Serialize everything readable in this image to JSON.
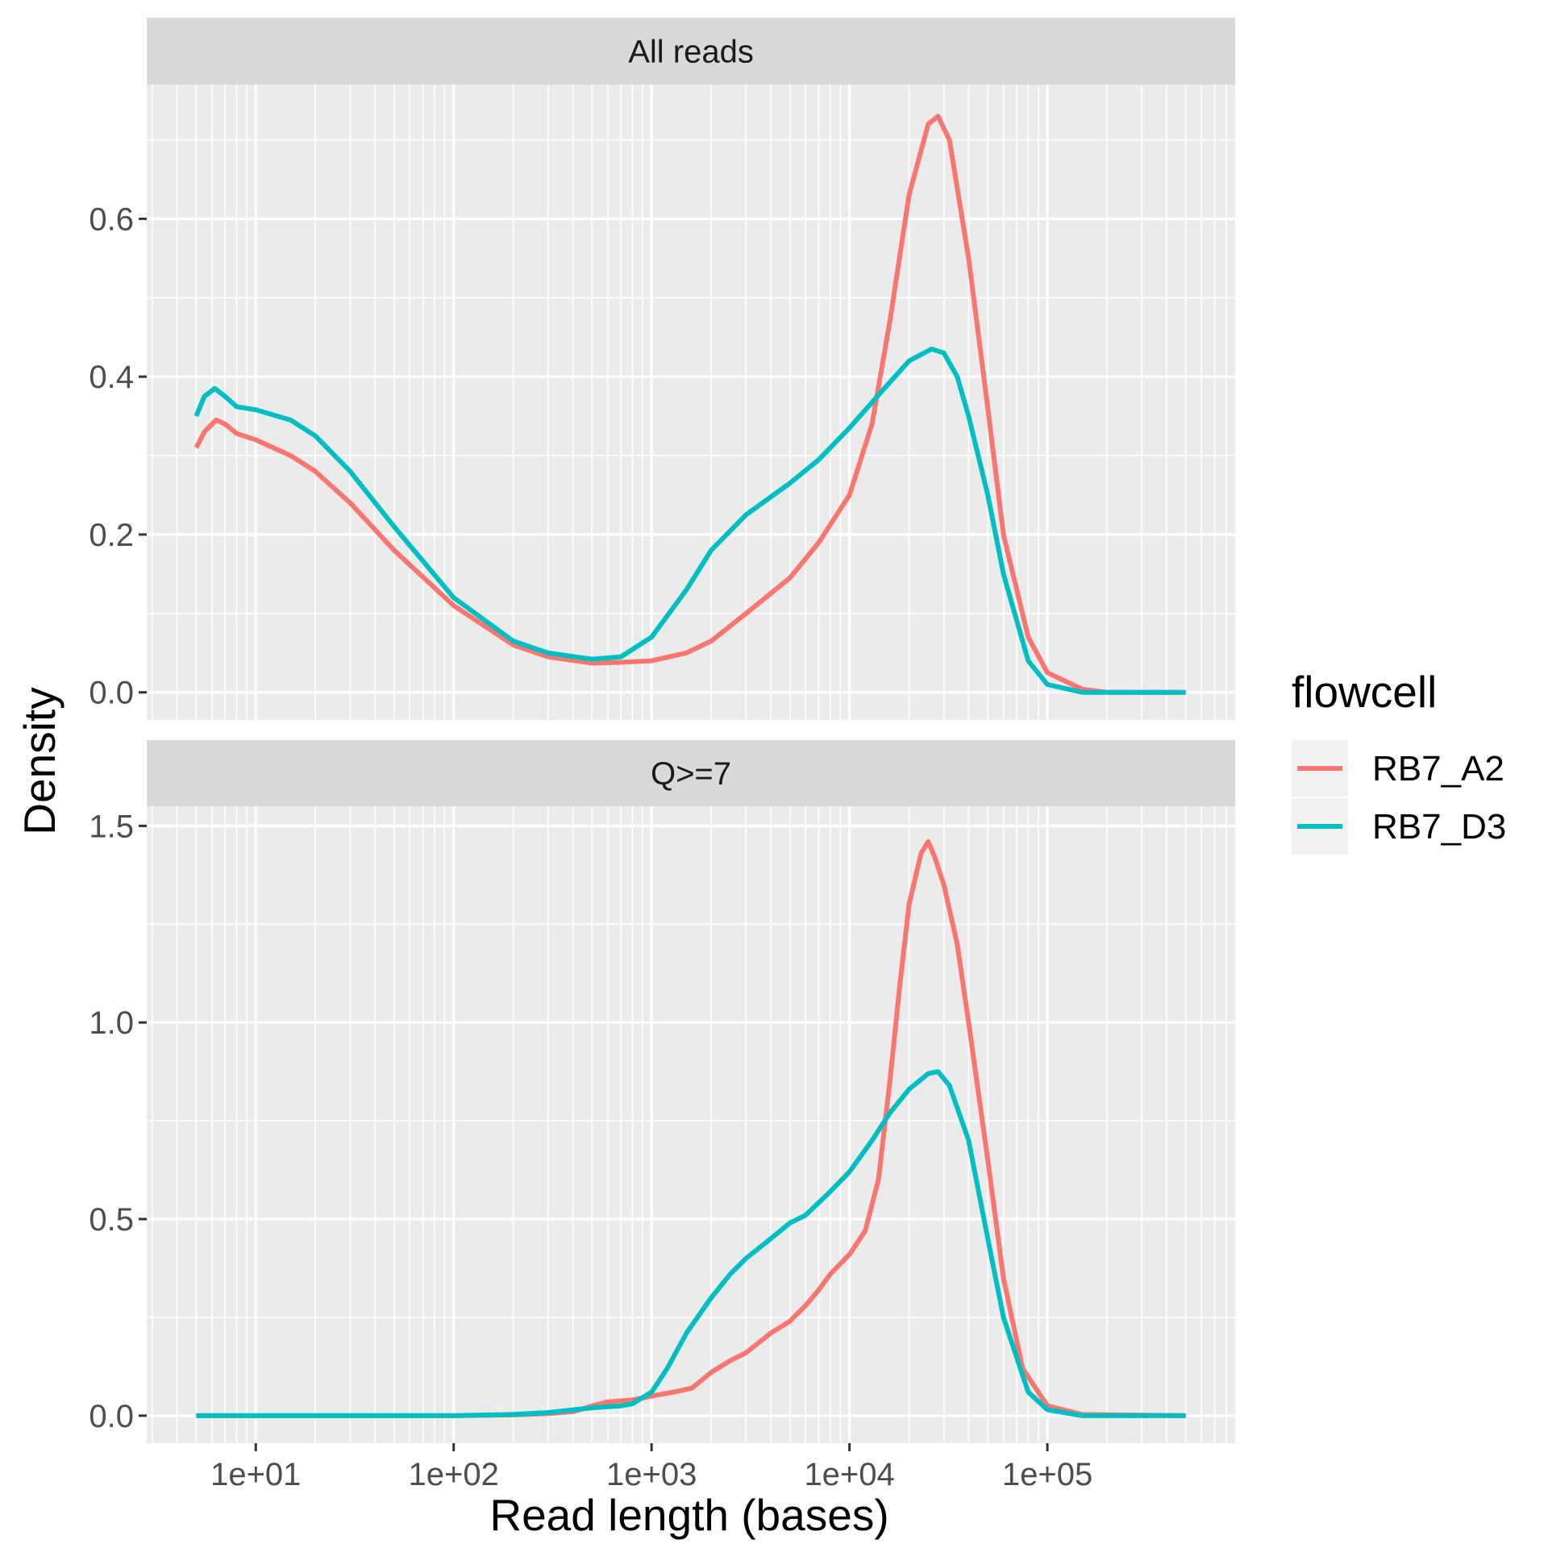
{
  "chart_data": {
    "type": "line",
    "xlabel": "Read length (bases)",
    "ylabel": "Density",
    "x_scale": "log10",
    "xlim": [
      5,
      500000
    ],
    "x_ticks": [
      10,
      100,
      1000,
      10000,
      100000
    ],
    "x_tick_labels": [
      "1e+01",
      "1e+02",
      "1e+03",
      "1e+04",
      "1e+05"
    ],
    "legend": {
      "title": "flowcell",
      "position": "right"
    },
    "colors": {
      "RB7_A2": "#F8766D",
      "RB7_D3": "#00BFC4"
    },
    "grid": true,
    "panels": [
      {
        "strip": "All reads",
        "ylim": [
          -0.035,
          0.77
        ],
        "y_ticks": [
          0.0,
          0.2,
          0.4,
          0.6
        ],
        "y_tick_labels": [
          "0.0",
          "0.2",
          "0.4",
          "0.6"
        ],
        "series": [
          {
            "name": "RB7_A2",
            "points": [
              [
                5,
                0.31
              ],
              [
                5.5,
                0.33
              ],
              [
                6.3,
                0.345
              ],
              [
                7,
                0.34
              ],
              [
                8,
                0.328
              ],
              [
                10,
                0.32
              ],
              [
                15,
                0.3
              ],
              [
                20,
                0.28
              ],
              [
                30,
                0.24
              ],
              [
                50,
                0.18
              ],
              [
                100,
                0.11
              ],
              [
                200,
                0.06
              ],
              [
                300,
                0.045
              ],
              [
                500,
                0.037
              ],
              [
                700,
                0.038
              ],
              [
                1000,
                0.04
              ],
              [
                1500,
                0.05
              ],
              [
                2000,
                0.065
              ],
              [
                3000,
                0.1
              ],
              [
                5000,
                0.145
              ],
              [
                7000,
                0.19
              ],
              [
                10000,
                0.25
              ],
              [
                13000,
                0.34
              ],
              [
                16000,
                0.47
              ],
              [
                20000,
                0.63
              ],
              [
                25000,
                0.72
              ],
              [
                28000,
                0.73
              ],
              [
                32000,
                0.7
              ],
              [
                40000,
                0.55
              ],
              [
                50000,
                0.36
              ],
              [
                60000,
                0.2
              ],
              [
                80000,
                0.07
              ],
              [
                100000,
                0.025
              ],
              [
                150000,
                0.004
              ],
              [
                200000,
                0.0
              ],
              [
                500000,
                0.0
              ]
            ]
          },
          {
            "name": "RB7_D3",
            "points": [
              [
                5,
                0.35
              ],
              [
                5.5,
                0.375
              ],
              [
                6.2,
                0.385
              ],
              [
                7,
                0.375
              ],
              [
                8,
                0.362
              ],
              [
                10,
                0.358
              ],
              [
                15,
                0.345
              ],
              [
                20,
                0.325
              ],
              [
                30,
                0.28
              ],
              [
                50,
                0.21
              ],
              [
                100,
                0.12
              ],
              [
                200,
                0.065
              ],
              [
                300,
                0.05
              ],
              [
                500,
                0.042
              ],
              [
                700,
                0.045
              ],
              [
                1000,
                0.07
              ],
              [
                1500,
                0.13
              ],
              [
                2000,
                0.18
              ],
              [
                3000,
                0.225
              ],
              [
                5000,
                0.265
              ],
              [
                7000,
                0.295
              ],
              [
                10000,
                0.335
              ],
              [
                15000,
                0.385
              ],
              [
                20000,
                0.42
              ],
              [
                26000,
                0.435
              ],
              [
                30000,
                0.43
              ],
              [
                35000,
                0.4
              ],
              [
                40000,
                0.35
              ],
              [
                50000,
                0.25
              ],
              [
                60000,
                0.15
              ],
              [
                80000,
                0.04
              ],
              [
                100000,
                0.01
              ],
              [
                150000,
                0.0
              ],
              [
                500000,
                0.0
              ]
            ]
          }
        ]
      },
      {
        "strip": "Q>=7",
        "ylim": [
          -0.07,
          1.55
        ],
        "y_ticks": [
          0.0,
          0.5,
          1.0,
          1.5
        ],
        "y_tick_labels": [
          "0.0",
          "0.5",
          "1.0",
          "1.5"
        ],
        "series": [
          {
            "name": "RB7_A2",
            "points": [
              [
                5,
                0.0
              ],
              [
                100,
                0.0
              ],
              [
                200,
                0.002
              ],
              [
                300,
                0.005
              ],
              [
                400,
                0.01
              ],
              [
                500,
                0.025
              ],
              [
                600,
                0.035
              ],
              [
                800,
                0.04
              ],
              [
                1000,
                0.05
              ],
              [
                1300,
                0.06
              ],
              [
                1600,
                0.07
              ],
              [
                2000,
                0.11
              ],
              [
                2500,
                0.14
              ],
              [
                3000,
                0.16
              ],
              [
                4000,
                0.21
              ],
              [
                5000,
                0.24
              ],
              [
                6000,
                0.28
              ],
              [
                7000,
                0.32
              ],
              [
                8000,
                0.36
              ],
              [
                10000,
                0.41
              ],
              [
                12000,
                0.47
              ],
              [
                14000,
                0.6
              ],
              [
                16000,
                0.85
              ],
              [
                18000,
                1.1
              ],
              [
                20000,
                1.3
              ],
              [
                23000,
                1.43
              ],
              [
                25000,
                1.46
              ],
              [
                27000,
                1.42
              ],
              [
                30000,
                1.35
              ],
              [
                35000,
                1.2
              ],
              [
                40000,
                1.0
              ],
              [
                50000,
                0.65
              ],
              [
                60000,
                0.35
              ],
              [
                75000,
                0.12
              ],
              [
                100000,
                0.025
              ],
              [
                150000,
                0.003
              ],
              [
                500000,
                0.0
              ]
            ]
          },
          {
            "name": "RB7_D3",
            "points": [
              [
                5,
                0.0
              ],
              [
                100,
                0.0
              ],
              [
                200,
                0.003
              ],
              [
                300,
                0.008
              ],
              [
                500,
                0.02
              ],
              [
                700,
                0.025
              ],
              [
                800,
                0.03
              ],
              [
                1000,
                0.06
              ],
              [
                1200,
                0.12
              ],
              [
                1500,
                0.21
              ],
              [
                2000,
                0.3
              ],
              [
                2500,
                0.36
              ],
              [
                3000,
                0.4
              ],
              [
                4000,
                0.45
              ],
              [
                5000,
                0.49
              ],
              [
                6000,
                0.51
              ],
              [
                8000,
                0.57
              ],
              [
                10000,
                0.62
              ],
              [
                13000,
                0.7
              ],
              [
                16000,
                0.77
              ],
              [
                20000,
                0.83
              ],
              [
                25000,
                0.87
              ],
              [
                28000,
                0.875
              ],
              [
                32000,
                0.84
              ],
              [
                40000,
                0.7
              ],
              [
                50000,
                0.45
              ],
              [
                60000,
                0.25
              ],
              [
                80000,
                0.06
              ],
              [
                100000,
                0.015
              ],
              [
                150000,
                0.0
              ],
              [
                500000,
                0.0
              ]
            ]
          }
        ]
      }
    ]
  }
}
